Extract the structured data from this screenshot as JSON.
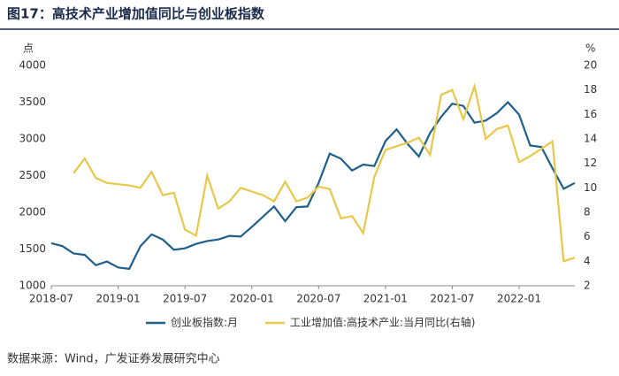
{
  "chart_data": {
    "type": "line",
    "title": "图17：高技术产业增加值同比与创业板指数",
    "y_unit": "点",
    "y2_unit": "%",
    "source": "数据来源：Wind，广发证券发展研究中心",
    "categories": [
      "2018-07",
      null,
      null,
      null,
      null,
      null,
      "2019-01",
      null,
      null,
      null,
      null,
      null,
      "2019-07",
      null,
      null,
      null,
      null,
      null,
      "2020-01",
      null,
      null,
      null,
      null,
      null,
      "2020-07",
      null,
      null,
      null,
      null,
      null,
      "2021-01",
      null,
      null,
      null,
      null,
      null,
      "2021-07",
      null,
      null,
      null,
      null,
      null,
      "2022-01",
      null,
      null,
      null,
      null,
      null
    ],
    "series": [
      {
        "name": "创业板指数:月",
        "color": "#1f5f8b",
        "values": [
          1580,
          1540,
          1440,
          1420,
          1280,
          1330,
          1250,
          1230,
          1540,
          1700,
          1630,
          1490,
          1510,
          1570,
          1610,
          1630,
          1680,
          1670,
          1800,
          1940,
          2080,
          1880,
          2070,
          2080,
          2400,
          2800,
          2730,
          2570,
          2650,
          2630,
          2970,
          3130,
          2930,
          2760,
          3080,
          3300,
          3480,
          3450,
          3220,
          3250,
          3350,
          3500,
          3330,
          2910,
          2890,
          2600,
          2320,
          2400
        ]
      },
      {
        "name": "工业增加值:高技术产业:当月同比(右轴)",
        "color": "#e8c84a",
        "axis": "y2",
        "values": [
          null,
          null,
          11.2,
          12.4,
          10.8,
          10.4,
          10.3,
          10.2,
          10.0,
          11.3,
          9.4,
          9.6,
          6.6,
          6.1,
          11.0,
          8.3,
          8.9,
          10.0,
          9.7,
          9.4,
          8.9,
          10.5,
          8.9,
          9.2,
          10.1,
          9.9,
          7.5,
          7.7,
          6.3,
          10.9,
          13.1,
          13.4,
          13.7,
          14.1,
          12.7,
          17.6,
          18.0,
          15.6,
          18.3,
          14.0,
          14.8,
          15.1,
          12.1,
          12.6,
          13.2,
          13.8,
          4.0,
          4.3
        ]
      }
    ],
    "ylim": [
      1000,
      4000
    ],
    "yticks": [
      1000,
      1500,
      2000,
      2500,
      3000,
      3500,
      4000
    ],
    "y2lim": [
      2,
      20
    ],
    "y2ticks": [
      2,
      4,
      6,
      8,
      10,
      12,
      14,
      16,
      18,
      20
    ],
    "legend": "bottom"
  }
}
